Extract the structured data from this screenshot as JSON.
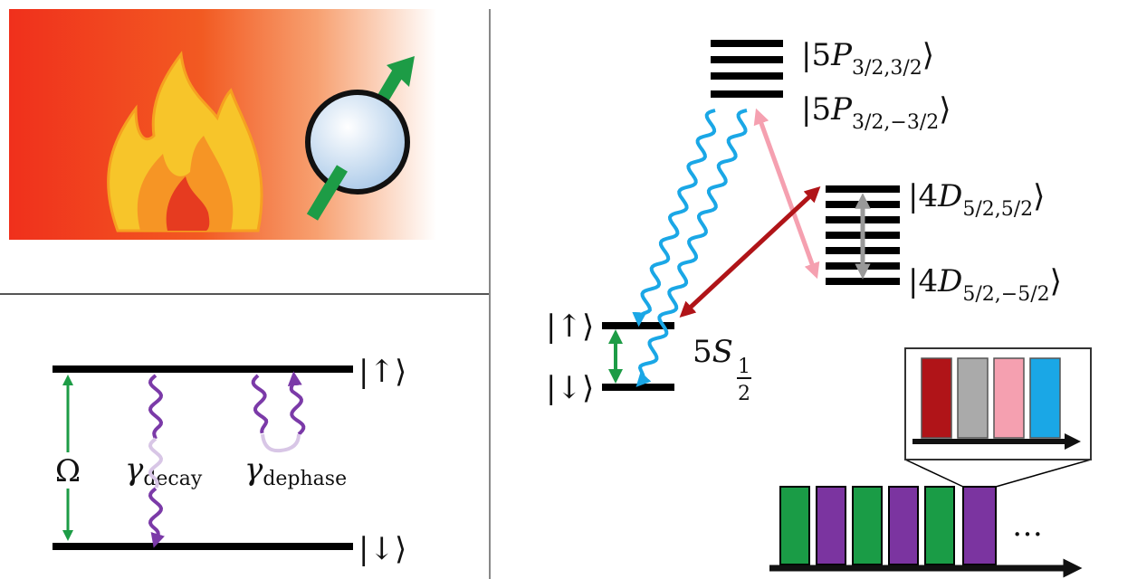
{
  "left_panel": {
    "up": "|↑⟩",
    "down": "|↓⟩",
    "rabi": "Ω",
    "decay": {
      "symbol": "γ",
      "sub": "decay"
    },
    "dephase": {
      "symbol": "γ",
      "sub": "dephase"
    }
  },
  "levels": {
    "p_top": {
      "open": "|5",
      "italic": "P",
      "sub": "3/2,3/2",
      "close": "⟩"
    },
    "p_bottom": {
      "open": "|5",
      "italic": "P",
      "sub": "3/2,−3/2",
      "close": "⟩"
    },
    "d_top": {
      "open": "|4",
      "italic": "D",
      "sub": "5/2,5/2",
      "close": "⟩"
    },
    "d_bottom": {
      "open": "|4",
      "italic": "D",
      "sub": "5/2,−5/2",
      "close": "⟩"
    },
    "s_up": "|↑⟩",
    "s_down": "|↓⟩",
    "s_label": {
      "text": "5",
      "italic": "S",
      "num": "1",
      "den": "2"
    }
  },
  "sequence": {
    "ellipsis": "…"
  }
}
